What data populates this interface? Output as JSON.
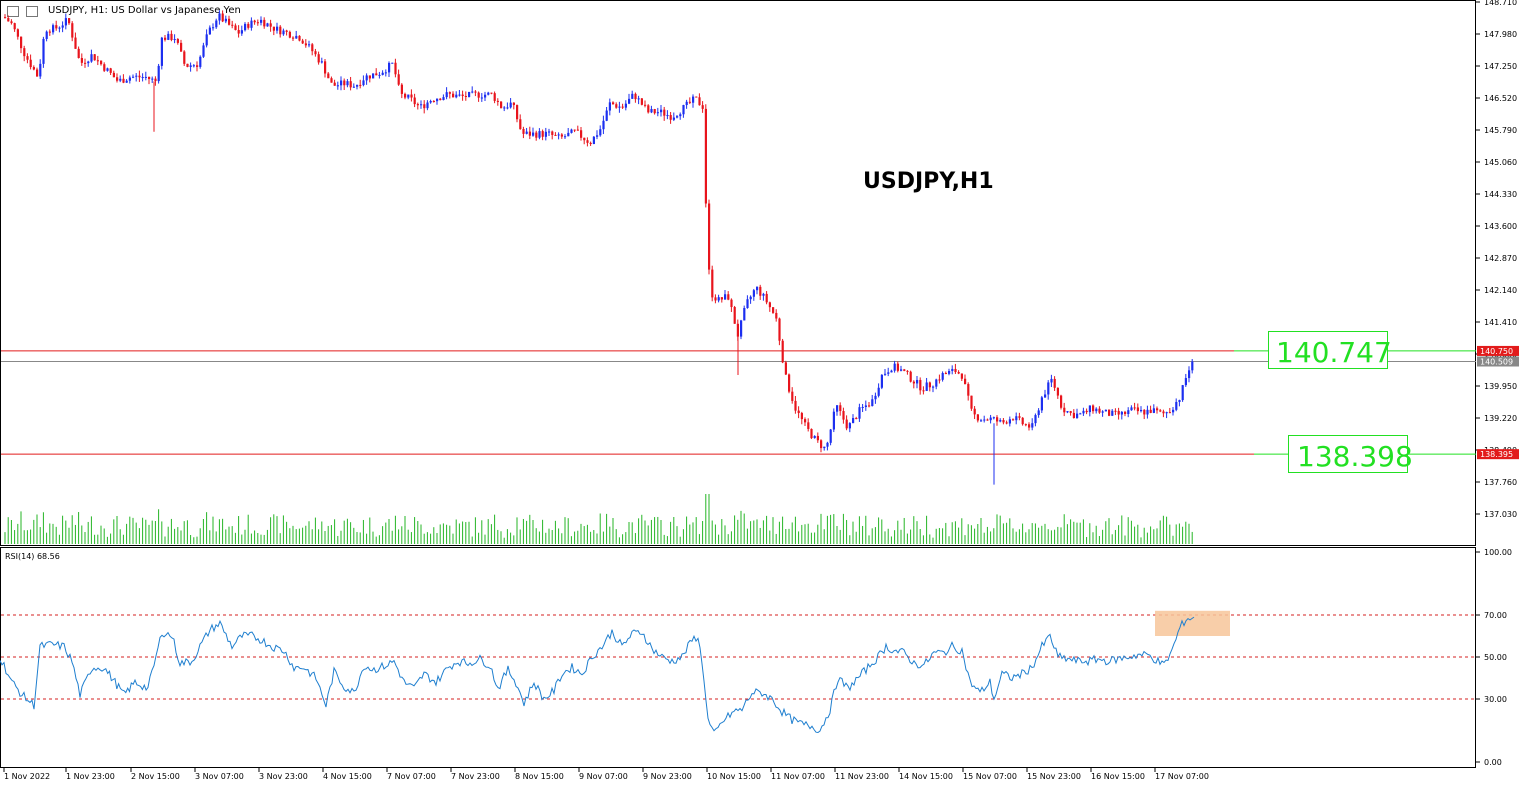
{
  "header": {
    "symbol_label": "USDJPY, H1:  US Dollar vs Japanese Yen",
    "icons": [
      "window-grid-icon",
      "window-restore-icon"
    ]
  },
  "colors": {
    "bull": "#1c2ff0",
    "bear": "#e8141c",
    "volume": "#25b525",
    "rsi_line": "#1f7fcf",
    "level_line": "#e21b1b",
    "rsi_level": "#d62020",
    "label_green": "#22e022",
    "highlight": "#f7c69a"
  },
  "chart_data": [
    {
      "type": "candlestick",
      "title": "USDJPY,H1",
      "y_ticks": [
        "148.710",
        "147.980",
        "147.250",
        "146.520",
        "145.790",
        "145.060",
        "144.330",
        "143.600",
        "142.870",
        "142.140",
        "141.410",
        "140.680",
        "139.950",
        "139.220",
        "138.490",
        "137.760",
        "137.030"
      ],
      "ylim": [
        136.55,
        148.85
      ],
      "x_ticks": [
        "1 Nov 2022",
        "1 Nov 23:00",
        "2 Nov 15:00",
        "3 Nov 07:00",
        "3 Nov 23:00",
        "4 Nov 15:00",
        "7 Nov 07:00",
        "7 Nov 23:00",
        "8 Nov 15:00",
        "9 Nov 07:00",
        "9 Nov 23:00",
        "10 Nov 15:00",
        "11 Nov 07:00",
        "11 Nov 23:00",
        "14 Nov 15:00",
        "15 Nov 07:00",
        "15 Nov 23:00",
        "16 Nov 15:00",
        "17 Nov 07:00"
      ],
      "price_path": [
        [
          0,
          148.45
        ],
        [
          12,
          148.2
        ],
        [
          25,
          147.5
        ],
        [
          38,
          147.0
        ],
        [
          45,
          148.1
        ],
        [
          55,
          148.1
        ],
        [
          68,
          148.3
        ],
        [
          80,
          147.3
        ],
        [
          92,
          147.5
        ],
        [
          105,
          147.2
        ],
        [
          118,
          146.9
        ],
        [
          130,
          147.0
        ],
        [
          145,
          147.0
        ],
        [
          156,
          146.9
        ],
        [
          162,
          147.9
        ],
        [
          175,
          147.9
        ],
        [
          185,
          147.25
        ],
        [
          198,
          147.3
        ],
        [
          208,
          148.0
        ],
        [
          218,
          148.4
        ],
        [
          228,
          148.2
        ],
        [
          238,
          148.0
        ],
        [
          248,
          148.2
        ],
        [
          260,
          148.3
        ],
        [
          275,
          148.1
        ],
        [
          288,
          148.0
        ],
        [
          300,
          147.9
        ],
        [
          312,
          147.6
        ],
        [
          322,
          147.3
        ],
        [
          332,
          146.8
        ],
        [
          345,
          146.85
        ],
        [
          355,
          146.8
        ],
        [
          365,
          147.0
        ],
        [
          380,
          147.1
        ],
        [
          393,
          147.3
        ],
        [
          400,
          146.6
        ],
        [
          410,
          146.5
        ],
        [
          420,
          146.3
        ],
        [
          432,
          146.5
        ],
        [
          448,
          146.6
        ],
        [
          462,
          146.55
        ],
        [
          478,
          146.6
        ],
        [
          492,
          146.6
        ],
        [
          502,
          146.3
        ],
        [
          512,
          146.4
        ],
        [
          522,
          145.7
        ],
        [
          535,
          145.7
        ],
        [
          548,
          145.7
        ],
        [
          560,
          145.6
        ],
        [
          575,
          145.75
        ],
        [
          590,
          145.5
        ],
        [
          600,
          145.8
        ],
        [
          610,
          146.4
        ],
        [
          622,
          146.3
        ],
        [
          634,
          146.6
        ],
        [
          648,
          146.2
        ],
        [
          660,
          146.2
        ],
        [
          672,
          146.1
        ],
        [
          684,
          146.3
        ],
        [
          695,
          146.5
        ],
        [
          704,
          146.3
        ],
        [
          706,
          143.9
        ],
        [
          710,
          142.1
        ],
        [
          718,
          141.9
        ],
        [
          728,
          142.0
        ],
        [
          738,
          141.1
        ],
        [
          746,
          141.8
        ],
        [
          756,
          142.2
        ],
        [
          766,
          141.9
        ],
        [
          776,
          141.5
        ],
        [
          786,
          140.1
        ],
        [
          796,
          139.4
        ],
        [
          806,
          139.0
        ],
        [
          816,
          138.7
        ],
        [
          826,
          138.5
        ],
        [
          836,
          139.5
        ],
        [
          848,
          139.0
        ],
        [
          860,
          139.4
        ],
        [
          872,
          139.6
        ],
        [
          882,
          140.2
        ],
        [
          892,
          140.4
        ],
        [
          902,
          140.3
        ],
        [
          912,
          140.1
        ],
        [
          922,
          139.9
        ],
        [
          932,
          140.0
        ],
        [
          942,
          140.2
        ],
        [
          955,
          140.3
        ],
        [
          962,
          140.2
        ],
        [
          972,
          139.3
        ],
        [
          982,
          139.2
        ],
        [
          992,
          139.2
        ],
        [
          1002,
          139.1
        ],
        [
          1012,
          139.25
        ],
        [
          1022,
          139.1
        ],
        [
          1032,
          139.0
        ],
        [
          1042,
          139.7
        ],
        [
          1052,
          140.1
        ],
        [
          1062,
          139.45
        ],
        [
          1072,
          139.3
        ],
        [
          1082,
          139.3
        ],
        [
          1092,
          139.45
        ],
        [
          1102,
          139.35
        ],
        [
          1112,
          139.3
        ],
        [
          1122,
          139.3
        ],
        [
          1132,
          139.4
        ],
        [
          1142,
          139.35
        ],
        [
          1152,
          139.4
        ],
        [
          1162,
          139.3
        ],
        [
          1170,
          139.4
        ],
        [
          1180,
          139.7
        ],
        [
          1188,
          140.3
        ],
        [
          1194,
          140.5
        ]
      ],
      "levels": [
        {
          "label": "140.747",
          "axis_label": "140.750",
          "value": 140.75,
          "color": "#e21b1b"
        },
        {
          "label": "",
          "axis_label": "140.509",
          "value": 140.509,
          "color": "#888888"
        },
        {
          "label": "138.398",
          "axis_label": "138.395",
          "value": 138.395,
          "color": "#e21b1b"
        }
      ],
      "volume": "per-bar tick volume histogram (green)"
    },
    {
      "type": "line",
      "title": "RSI(14) 68.56",
      "ylim": [
        0,
        100
      ],
      "y_ticks": [
        "100.00",
        "70.00",
        "50.00",
        "30.00",
        "0.00"
      ],
      "levels": [
        70,
        50,
        30
      ],
      "values": [
        [
          0,
          50
        ],
        [
          12,
          38
        ],
        [
          22,
          32
        ],
        [
          34,
          27
        ],
        [
          40,
          55
        ],
        [
          52,
          56
        ],
        [
          64,
          55
        ],
        [
          72,
          48
        ],
        [
          80,
          32
        ],
        [
          92,
          45
        ],
        [
          104,
          45
        ],
        [
          115,
          38
        ],
        [
          124,
          32
        ],
        [
          135,
          38
        ],
        [
          148,
          35
        ],
        [
          156,
          50
        ],
        [
          162,
          62
        ],
        [
          172,
          60
        ],
        [
          180,
          47
        ],
        [
          192,
          48
        ],
        [
          200,
          55
        ],
        [
          210,
          63
        ],
        [
          220,
          66
        ],
        [
          232,
          55
        ],
        [
          242,
          60
        ],
        [
          252,
          60
        ],
        [
          262,
          58
        ],
        [
          272,
          55
        ],
        [
          284,
          53
        ],
        [
          294,
          45
        ],
        [
          304,
          45
        ],
        [
          316,
          40
        ],
        [
          326,
          27
        ],
        [
          334,
          43
        ],
        [
          344,
          36
        ],
        [
          354,
          33
        ],
        [
          364,
          46
        ],
        [
          374,
          44
        ],
        [
          386,
          46
        ],
        [
          394,
          48
        ],
        [
          404,
          38
        ],
        [
          414,
          35
        ],
        [
          424,
          42
        ],
        [
          436,
          38
        ],
        [
          448,
          45
        ],
        [
          458,
          48
        ],
        [
          468,
          47
        ],
        [
          480,
          49
        ],
        [
          490,
          46
        ],
        [
          498,
          35
        ],
        [
          508,
          44
        ],
        [
          516,
          38
        ],
        [
          524,
          28
        ],
        [
          534,
          38
        ],
        [
          544,
          30
        ],
        [
          554,
          34
        ],
        [
          562,
          42
        ],
        [
          572,
          45
        ],
        [
          582,
          42
        ],
        [
          592,
          50
        ],
        [
          602,
          55
        ],
        [
          612,
          62
        ],
        [
          622,
          55
        ],
        [
          632,
          61
        ],
        [
          642,
          62
        ],
        [
          652,
          54
        ],
        [
          662,
          50
        ],
        [
          672,
          48
        ],
        [
          682,
          50
        ],
        [
          692,
          58
        ],
        [
          698,
          60
        ],
        [
          704,
          40
        ],
        [
          708,
          20
        ],
        [
          714,
          13
        ],
        [
          724,
          20
        ],
        [
          734,
          24
        ],
        [
          742,
          25
        ],
        [
          752,
          33
        ],
        [
          762,
          33
        ],
        [
          772,
          30
        ],
        [
          782,
          24
        ],
        [
          792,
          20
        ],
        [
          802,
          18
        ],
        [
          812,
          17
        ],
        [
          820,
          15
        ],
        [
          830,
          25
        ],
        [
          838,
          40
        ],
        [
          848,
          35
        ],
        [
          858,
          40
        ],
        [
          868,
          45
        ],
        [
          878,
          50
        ],
        [
          886,
          55
        ],
        [
          894,
          53
        ],
        [
          904,
          52
        ],
        [
          914,
          47
        ],
        [
          924,
          46
        ],
        [
          934,
          52
        ],
        [
          944,
          52
        ],
        [
          952,
          55
        ],
        [
          962,
          53
        ],
        [
          970,
          38
        ],
        [
          980,
          33
        ],
        [
          990,
          38
        ],
        [
          994,
          30
        ],
        [
          1002,
          42
        ],
        [
          1012,
          40
        ],
        [
          1022,
          42
        ],
        [
          1032,
          45
        ],
        [
          1042,
          55
        ],
        [
          1050,
          60
        ],
        [
          1058,
          50
        ],
        [
          1068,
          49
        ],
        [
          1078,
          48
        ],
        [
          1088,
          48
        ],
        [
          1098,
          49
        ],
        [
          1108,
          48
        ],
        [
          1118,
          49
        ],
        [
          1128,
          50
        ],
        [
          1138,
          51
        ],
        [
          1148,
          51
        ],
        [
          1158,
          48
        ],
        [
          1164,
          46
        ],
        [
          1172,
          53
        ],
        [
          1180,
          64
        ],
        [
          1186,
          68
        ],
        [
          1194,
          69
        ]
      ],
      "highlight": {
        "x_from": 1155,
        "x_to": 1230,
        "y_from": 60,
        "y_to": 72
      }
    }
  ]
}
